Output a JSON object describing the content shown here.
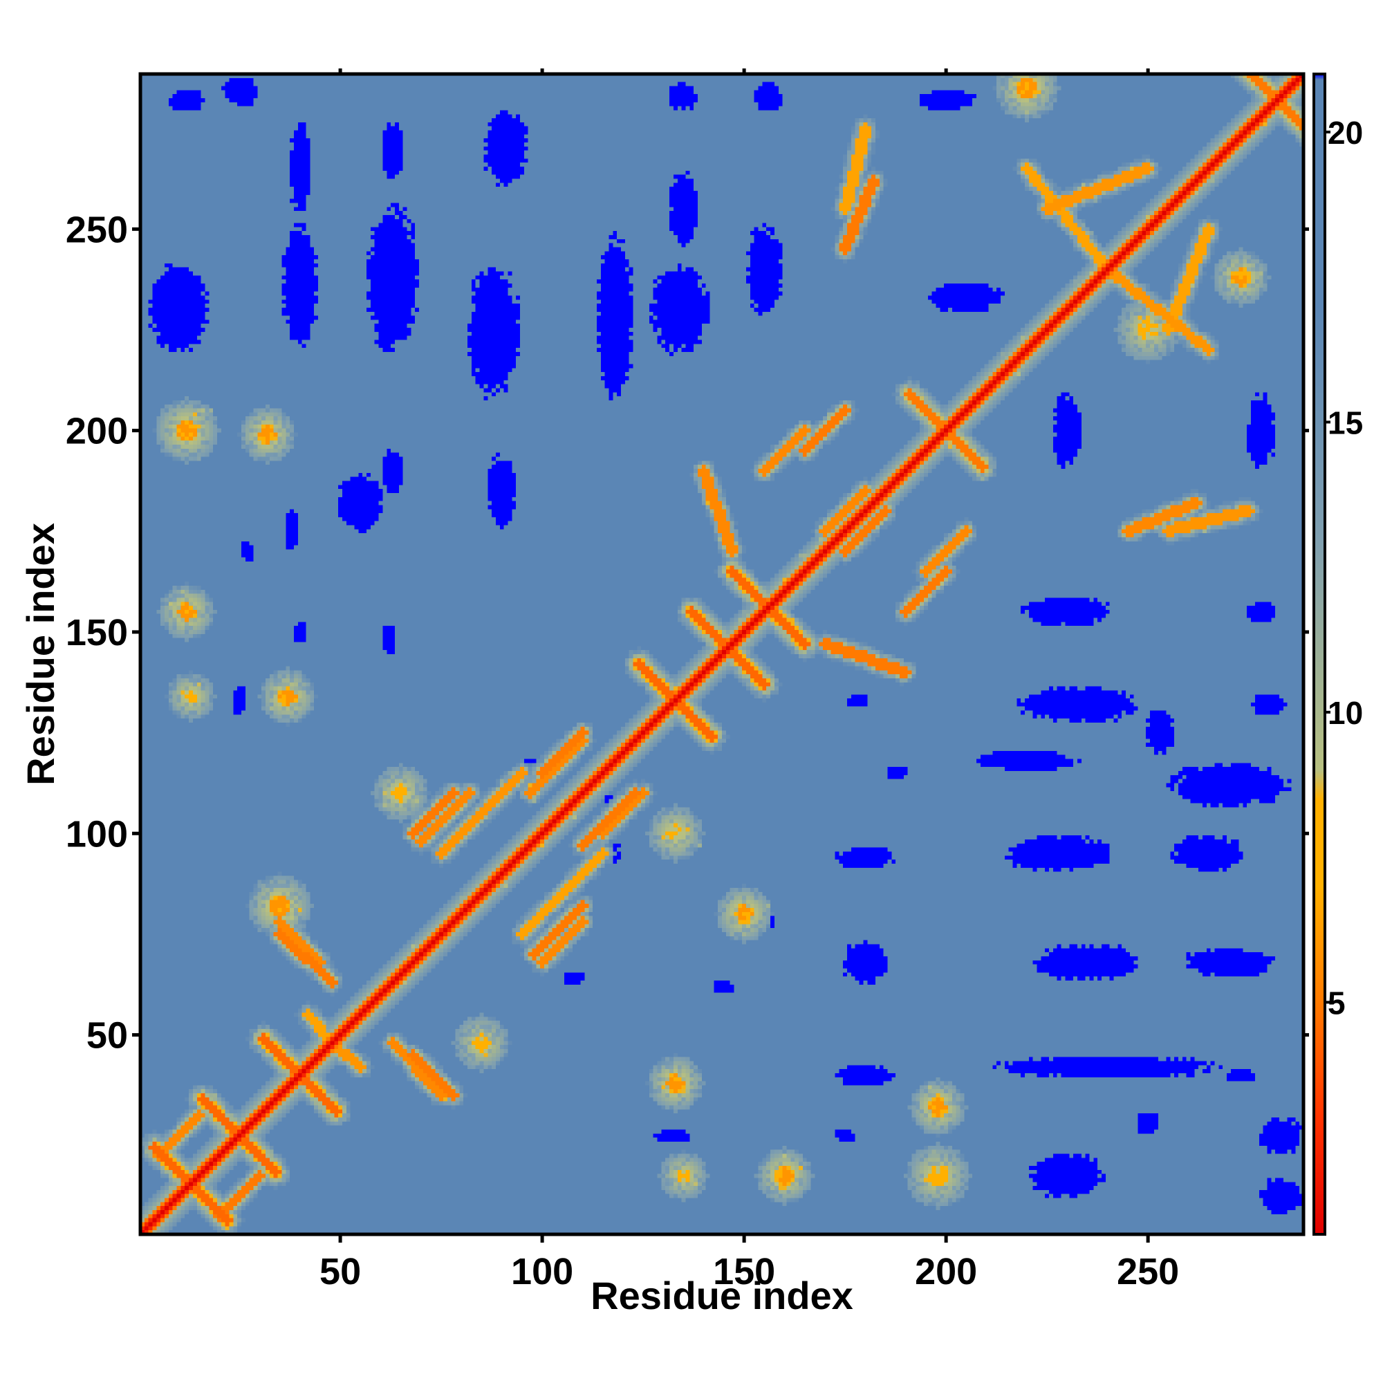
{
  "chart_data": {
    "type": "heatmap",
    "title": "",
    "xlabel": "Residue index",
    "ylabel": "Residue index",
    "x_range": [
      1,
      288
    ],
    "y_range": [
      1,
      288
    ],
    "x_ticks": [
      50,
      100,
      150,
      200,
      250
    ],
    "y_ticks": [
      50,
      100,
      150,
      200,
      250
    ],
    "colorbar": {
      "min": 1,
      "max": 21,
      "ticks": [
        5,
        10,
        15,
        20
      ],
      "stops": [
        {
          "value": 1,
          "color": "#e00000"
        },
        {
          "value": 3,
          "color": "#ff3300"
        },
        {
          "value": 5,
          "color": "#ff7a00"
        },
        {
          "value": 7,
          "color": "#ffb000"
        },
        {
          "value": 8.5,
          "color": "#ffb000"
        },
        {
          "value": 9,
          "color": "#b8c080"
        },
        {
          "value": 13,
          "color": "#7f9fb0"
        },
        {
          "value": 17,
          "color": "#5b86b5"
        },
        {
          "value": 20.9,
          "color": "#5b86b5"
        },
        {
          "value": 21,
          "color": "#0000ff"
        }
      ]
    },
    "background_value": 17,
    "diagonal": {
      "value": 1,
      "band_value": 11
    },
    "contact_crosses": [
      {
        "x": 13,
        "y": 13,
        "value": 4.5
      },
      {
        "x": 25,
        "y": 25,
        "value": 4.5
      },
      {
        "x": 40,
        "y": 40,
        "value": 4.5
      },
      {
        "x": 133,
        "y": 133,
        "value": 4.5
      },
      {
        "x": 146,
        "y": 146,
        "value": 4.5
      },
      {
        "x": 156,
        "y": 156,
        "value": 4.5
      },
      {
        "x": 200,
        "y": 200,
        "value": 5
      },
      {
        "x": 282,
        "y": 282,
        "value": 5
      }
    ],
    "contact_segments": [
      {
        "x1": 35,
        "y1": 75,
        "x2": 48,
        "y2": 63,
        "value": 5
      },
      {
        "x1": 68,
        "y1": 100,
        "x2": 78,
        "y2": 110,
        "value": 5
      },
      {
        "x1": 68,
        "y1": 45,
        "x2": 78,
        "y2": 35,
        "value": 5
      },
      {
        "x1": 75,
        "y1": 95,
        "x2": 95,
        "y2": 115,
        "value": 6
      },
      {
        "x1": 98,
        "y1": 70,
        "x2": 110,
        "y2": 82,
        "value": 5
      },
      {
        "x1": 100,
        "y1": 115,
        "x2": 110,
        "y2": 125,
        "value": 5
      },
      {
        "x1": 110,
        "y1": 97,
        "x2": 123,
        "y2": 110,
        "value": 5
      },
      {
        "x1": 175,
        "y1": 170,
        "x2": 185,
        "y2": 180,
        "value": 5
      },
      {
        "x1": 175,
        "y1": 245,
        "x2": 182,
        "y2": 262,
        "value": 5
      },
      {
        "x1": 165,
        "y1": 195,
        "x2": 175,
        "y2": 205,
        "value": 5
      },
      {
        "x1": 190,
        "y1": 155,
        "x2": 200,
        "y2": 165,
        "value": 5
      },
      {
        "x1": 170,
        "y1": 147,
        "x2": 190,
        "y2": 140,
        "value": 5
      },
      {
        "x1": 255,
        "y1": 175,
        "x2": 275,
        "y2": 180,
        "value": 6
      },
      {
        "x1": 225,
        "y1": 255,
        "x2": 250,
        "y2": 265,
        "value": 6
      },
      {
        "x1": 240,
        "y1": 240,
        "x2": 265,
        "y2": 220,
        "value": 6
      },
      {
        "x1": 20,
        "y1": 5,
        "x2": 30,
        "y2": 15,
        "value": 5
      },
      {
        "x1": 48,
        "y1": 48,
        "x2": 55,
        "y2": 42,
        "value": 6
      }
    ],
    "contact_spots": [
      {
        "x": 12,
        "y": 200,
        "r": 5,
        "value": 6
      },
      {
        "x": 32,
        "y": 199,
        "r": 4,
        "value": 6
      },
      {
        "x": 12,
        "y": 155,
        "r": 4,
        "value": 6
      },
      {
        "x": 13,
        "y": 134,
        "r": 3,
        "value": 7
      },
      {
        "x": 37,
        "y": 134,
        "r": 4,
        "value": 6
      },
      {
        "x": 35,
        "y": 82,
        "r": 5,
        "value": 6
      },
      {
        "x": 65,
        "y": 110,
        "r": 4,
        "value": 7
      },
      {
        "x": 133,
        "y": 100,
        "r": 4,
        "value": 7
      },
      {
        "x": 150,
        "y": 80,
        "r": 4,
        "value": 6
      },
      {
        "x": 133,
        "y": 38,
        "r": 4,
        "value": 6
      },
      {
        "x": 160,
        "y": 15,
        "r": 4,
        "value": 6
      },
      {
        "x": 135,
        "y": 15,
        "r": 3,
        "value": 7
      },
      {
        "x": 198,
        "y": 32,
        "r": 4,
        "value": 6
      },
      {
        "x": 198,
        "y": 15,
        "r": 5,
        "value": 7
      },
      {
        "x": 85,
        "y": 48,
        "r": 4,
        "value": 7
      },
      {
        "x": 220,
        "y": 285,
        "r": 5,
        "value": 6
      },
      {
        "x": 273,
        "y": 238,
        "r": 4,
        "value": 6
      },
      {
        "x": 250,
        "y": 225,
        "r": 5,
        "value": 7
      }
    ],
    "blue_regions": [
      {
        "x": 12,
        "y": 282,
        "rx": 5,
        "ry": 3
      },
      {
        "x": 25,
        "y": 284,
        "rx": 5,
        "ry": 4
      },
      {
        "x": 10,
        "y": 230,
        "rx": 8,
        "ry": 12
      },
      {
        "x": 40,
        "y": 236,
        "rx": 5,
        "ry": 16
      },
      {
        "x": 40,
        "y": 265,
        "rx": 3,
        "ry": 12
      },
      {
        "x": 63,
        "y": 238,
        "rx": 7,
        "ry": 20
      },
      {
        "x": 63,
        "y": 270,
        "rx": 3,
        "ry": 8
      },
      {
        "x": 88,
        "y": 225,
        "rx": 7,
        "ry": 18
      },
      {
        "x": 91,
        "y": 270,
        "rx": 6,
        "ry": 10
      },
      {
        "x": 118,
        "y": 228,
        "rx": 5,
        "ry": 22
      },
      {
        "x": 135,
        "y": 255,
        "rx": 4,
        "ry": 10
      },
      {
        "x": 134,
        "y": 230,
        "rx": 8,
        "ry": 12
      },
      {
        "x": 155,
        "y": 240,
        "rx": 5,
        "ry": 12
      },
      {
        "x": 156,
        "y": 283,
        "rx": 4,
        "ry": 4
      },
      {
        "x": 135,
        "y": 283,
        "rx": 4,
        "ry": 4
      },
      {
        "x": 200,
        "y": 282,
        "rx": 8,
        "ry": 3
      },
      {
        "x": 205,
        "y": 233,
        "rx": 10,
        "ry": 4
      },
      {
        "x": 63,
        "y": 190,
        "rx": 3,
        "ry": 6
      },
      {
        "x": 90,
        "y": 185,
        "rx": 4,
        "ry": 10
      },
      {
        "x": 55,
        "y": 182,
        "rx": 6,
        "ry": 8
      },
      {
        "x": 38,
        "y": 175,
        "rx": 2,
        "ry": 6
      },
      {
        "x": 27,
        "y": 170,
        "rx": 2,
        "ry": 3
      },
      {
        "x": 230,
        "y": 200,
        "rx": 4,
        "ry": 10
      },
      {
        "x": 278,
        "y": 200,
        "rx": 4,
        "ry": 10
      },
      {
        "x": 230,
        "y": 155,
        "rx": 12,
        "ry": 4
      },
      {
        "x": 278,
        "y": 155,
        "rx": 4,
        "ry": 3
      },
      {
        "x": 233,
        "y": 132,
        "rx": 16,
        "ry": 5
      },
      {
        "x": 280,
        "y": 132,
        "rx": 5,
        "ry": 3
      },
      {
        "x": 220,
        "y": 118,
        "rx": 14,
        "ry": 3
      },
      {
        "x": 270,
        "y": 112,
        "rx": 16,
        "ry": 6
      },
      {
        "x": 228,
        "y": 95,
        "rx": 14,
        "ry": 5
      },
      {
        "x": 265,
        "y": 95,
        "rx": 10,
        "ry": 5
      },
      {
        "x": 180,
        "y": 94,
        "rx": 8,
        "ry": 3
      },
      {
        "x": 235,
        "y": 68,
        "rx": 14,
        "ry": 5
      },
      {
        "x": 270,
        "y": 68,
        "rx": 12,
        "ry": 4
      },
      {
        "x": 180,
        "y": 68,
        "rx": 6,
        "ry": 6
      },
      {
        "x": 240,
        "y": 42,
        "rx": 30,
        "ry": 3
      },
      {
        "x": 180,
        "y": 40,
        "rx": 8,
        "ry": 3
      },
      {
        "x": 230,
        "y": 15,
        "rx": 10,
        "ry": 6
      },
      {
        "x": 283,
        "y": 25,
        "rx": 6,
        "ry": 5
      },
      {
        "x": 283,
        "y": 10,
        "rx": 6,
        "ry": 5
      },
      {
        "x": 250,
        "y": 28,
        "rx": 3,
        "ry": 3
      },
      {
        "x": 188,
        "y": 115,
        "rx": 3,
        "ry": 2
      },
      {
        "x": 98,
        "y": 117,
        "rx": 3,
        "ry": 2
      },
      {
        "x": 117,
        "y": 107,
        "rx": 2,
        "ry": 3
      },
      {
        "x": 117,
        "y": 95,
        "rx": 3,
        "ry": 3
      },
      {
        "x": 65,
        "y": 108,
        "rx": 2,
        "ry": 3
      },
      {
        "x": 62,
        "y": 148,
        "rx": 2,
        "ry": 4
      },
      {
        "x": 40,
        "y": 150,
        "rx": 2,
        "ry": 3
      },
      {
        "x": 25,
        "y": 133,
        "rx": 2,
        "ry": 4
      },
      {
        "x": 178,
        "y": 133,
        "rx": 3,
        "ry": 2
      },
      {
        "x": 145,
        "y": 62,
        "rx": 3,
        "ry": 2
      },
      {
        "x": 108,
        "y": 64,
        "rx": 3,
        "ry": 2
      },
      {
        "x": 175,
        "y": 25,
        "rx": 3,
        "ry": 2
      },
      {
        "x": 132,
        "y": 25,
        "rx": 5,
        "ry": 2
      },
      {
        "x": 156,
        "y": 78,
        "rx": 2,
        "ry": 2
      },
      {
        "x": 253,
        "y": 125,
        "rx": 4,
        "ry": 6
      },
      {
        "x": 273,
        "y": 40,
        "rx": 4,
        "ry": 2
      }
    ]
  }
}
